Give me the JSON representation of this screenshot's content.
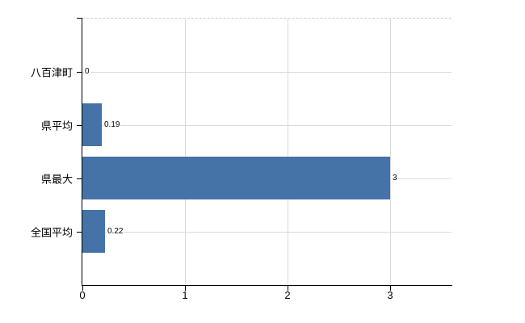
{
  "chart_data": {
    "type": "bar",
    "orientation": "horizontal",
    "title": "",
    "xlabel": "",
    "ylabel": "",
    "categories": [
      "八百津町",
      "県平均",
      "県最大",
      "全国平均"
    ],
    "values": [
      0,
      0.19,
      3,
      0.22
    ],
    "data_labels": [
      "0",
      "0.19",
      "3",
      "0.22"
    ],
    "x_ticks": [
      0,
      1,
      2,
      3
    ],
    "x_tick_labels": [
      "0",
      "1",
      "2",
      "3"
    ],
    "xlim": [
      0,
      3.6
    ],
    "grid": true,
    "legend_position": "none",
    "colors": {
      "bar": "#4572a7",
      "gridline": "#d7dcd7",
      "plot_border_top": "#cccccc",
      "axis": "#000000",
      "label_text": "#000000"
    }
  }
}
